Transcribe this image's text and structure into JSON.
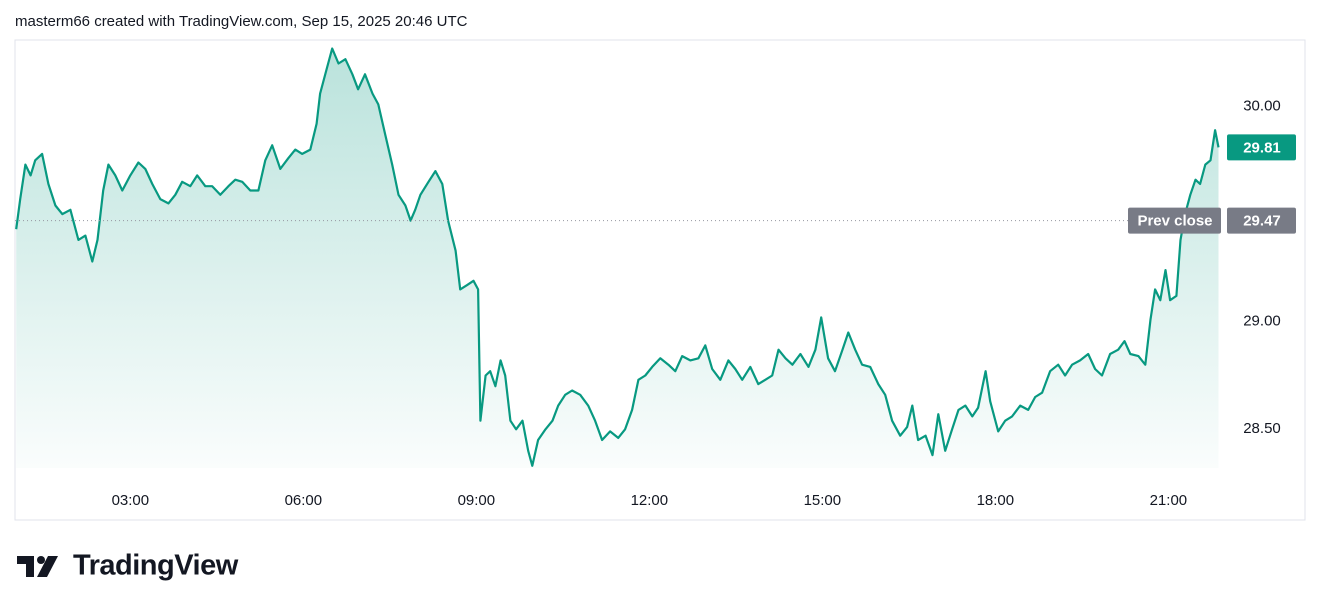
{
  "header": {
    "caption": "masterm66 created with TradingView.com, Sep 15, 2025 20:46 UTC"
  },
  "chart_data": {
    "type": "area",
    "color": "#089981",
    "grid": false,
    "x": [
      1.02,
      1.09,
      1.18,
      1.27,
      1.35,
      1.47,
      1.58,
      1.7,
      1.82,
      1.96,
      2.1,
      2.22,
      2.34,
      2.43,
      2.53,
      2.62,
      2.74,
      2.86,
      3.0,
      3.14,
      3.26,
      3.38,
      3.52,
      3.66,
      3.78,
      3.9,
      4.04,
      4.16,
      4.3,
      4.42,
      4.56,
      4.7,
      4.82,
      4.94,
      5.08,
      5.22,
      5.34,
      5.46,
      5.6,
      5.74,
      5.86,
      5.98,
      6.12,
      6.23,
      6.29,
      6.4,
      6.5,
      6.61,
      6.73,
      6.85,
      6.95,
      7.07,
      7.2,
      7.3,
      7.42,
      7.54,
      7.65,
      7.77,
      7.86,
      7.94,
      8.03,
      8.17,
      8.29,
      8.41,
      8.51,
      8.64,
      8.72,
      8.84,
      8.95,
      9.03,
      9.07,
      9.16,
      9.24,
      9.33,
      9.42,
      9.5,
      9.59,
      9.69,
      9.8,
      9.9,
      9.97,
      10.07,
      10.2,
      10.32,
      10.42,
      10.54,
      10.66,
      10.8,
      10.94,
      11.06,
      11.18,
      11.32,
      11.46,
      11.58,
      11.7,
      11.81,
      11.93,
      12.05,
      12.19,
      12.33,
      12.45,
      12.57,
      12.71,
      12.85,
      12.97,
      13.09,
      13.23,
      13.37,
      13.49,
      13.61,
      13.75,
      13.89,
      14.01,
      14.13,
      14.24,
      14.36,
      14.48,
      14.62,
      14.76,
      14.88,
      14.98,
      15.1,
      15.22,
      15.35,
      15.45,
      15.57,
      15.69,
      15.83,
      15.97,
      16.09,
      16.21,
      16.35,
      16.47,
      16.56,
      16.66,
      16.79,
      16.91,
      17.01,
      17.13,
      17.25,
      17.36,
      17.48,
      17.6,
      17.7,
      17.83,
      17.91,
      18.05,
      18.17,
      18.29,
      18.43,
      18.57,
      18.69,
      18.81,
      18.95,
      19.09,
      19.21,
      19.33,
      19.47,
      19.61,
      19.73,
      19.85,
      19.99,
      20.13,
      20.24,
      20.34,
      20.48,
      20.6,
      20.69,
      20.77,
      20.86,
      20.95,
      21.03,
      21.14,
      21.21,
      21.29,
      21.38,
      21.47,
      21.55,
      21.64,
      21.73,
      21.81,
      21.87
    ],
    "values": [
      29.43,
      29.57,
      29.73,
      29.68,
      29.75,
      29.78,
      29.64,
      29.54,
      29.5,
      29.52,
      29.38,
      29.4,
      29.28,
      29.38,
      29.61,
      29.73,
      29.68,
      29.61,
      29.68,
      29.74,
      29.71,
      29.64,
      29.57,
      29.55,
      29.59,
      29.65,
      29.63,
      29.68,
      29.63,
      29.63,
      29.59,
      29.63,
      29.66,
      29.65,
      29.61,
      29.61,
      29.75,
      29.82,
      29.71,
      29.76,
      29.8,
      29.78,
      29.8,
      29.92,
      30.06,
      30.17,
      30.27,
      30.2,
      30.22,
      30.15,
      30.08,
      30.15,
      30.06,
      30.01,
      29.87,
      29.73,
      29.59,
      29.54,
      29.47,
      29.52,
      29.59,
      29.65,
      29.7,
      29.64,
      29.47,
      29.33,
      29.15,
      29.17,
      29.19,
      29.15,
      28.54,
      28.75,
      28.77,
      28.7,
      28.82,
      28.75,
      28.54,
      28.5,
      28.54,
      28.4,
      28.33,
      28.45,
      28.5,
      28.54,
      28.61,
      28.66,
      28.68,
      28.66,
      28.61,
      28.54,
      28.45,
      28.49,
      28.46,
      28.5,
      28.59,
      28.73,
      28.75,
      28.79,
      28.83,
      28.8,
      28.77,
      28.84,
      28.82,
      28.83,
      28.89,
      28.78,
      28.73,
      28.82,
      28.78,
      28.73,
      28.79,
      28.71,
      28.73,
      28.75,
      28.87,
      28.83,
      28.8,
      28.85,
      28.79,
      28.87,
      29.02,
      28.83,
      28.77,
      28.87,
      28.95,
      28.87,
      28.8,
      28.79,
      28.71,
      28.66,
      28.54,
      28.47,
      28.51,
      28.61,
      28.45,
      28.47,
      28.38,
      28.57,
      28.4,
      28.5,
      28.59,
      28.61,
      28.56,
      28.6,
      28.77,
      28.63,
      28.49,
      28.54,
      28.56,
      28.61,
      28.59,
      28.65,
      28.67,
      28.77,
      28.8,
      28.75,
      28.8,
      28.82,
      28.85,
      28.78,
      28.75,
      28.85,
      28.87,
      28.91,
      28.85,
      28.84,
      28.8,
      29.01,
      29.15,
      29.1,
      29.24,
      29.1,
      29.12,
      29.38,
      29.5,
      29.59,
      29.66,
      29.64,
      29.73,
      29.75,
      29.89,
      29.81
    ],
    "xlim": [
      1.0,
      21.93
    ],
    "xticks": [
      {
        "value": 3,
        "label": "03:00"
      },
      {
        "value": 6,
        "label": "06:00"
      },
      {
        "value": 9,
        "label": "09:00"
      },
      {
        "value": 12,
        "label": "12:00"
      },
      {
        "value": 15,
        "label": "15:00"
      },
      {
        "value": 18,
        "label": "18:00"
      },
      {
        "value": 21,
        "label": "21:00"
      }
    ],
    "ylim": [
      28.32,
      30.3
    ],
    "yticks": [
      {
        "value": 28.5,
        "label": "28.50"
      },
      {
        "value": 29,
        "label": "29.00"
      },
      {
        "value": 30,
        "label": "30.00"
      }
    ],
    "last_value": 29.81,
    "prev_close": {
      "label": "Prev close",
      "value": 29.47
    }
  },
  "footer": {
    "brand": "TradingView"
  }
}
